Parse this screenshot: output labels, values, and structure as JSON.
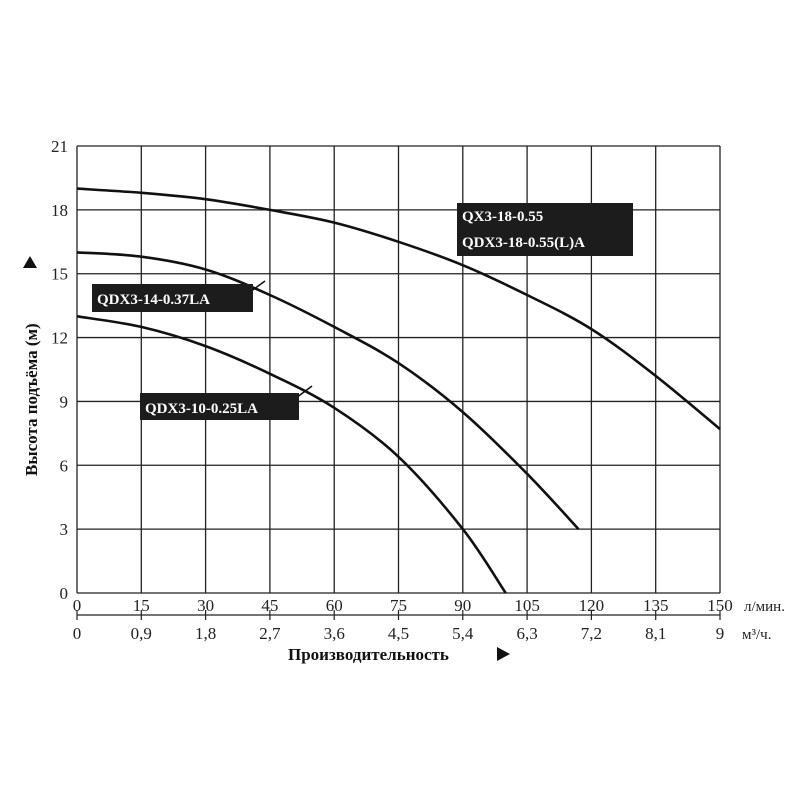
{
  "chart_data": {
    "type": "line",
    "ylabel": "Высота подъёма (м)",
    "xlabel": "Производительность",
    "x_unit_primary": "л/мин.",
    "x_unit_secondary": "м³/ч.",
    "xlim": [
      0,
      150
    ],
    "ylim": [
      0,
      21
    ],
    "x_ticks": [
      "0",
      "15",
      "30",
      "45",
      "60",
      "75",
      "90",
      "105",
      "120",
      "135",
      "150"
    ],
    "x_ticks_secondary": [
      "0",
      "0,9",
      "1,8",
      "2,7",
      "3,6",
      "4,5",
      "5,4",
      "6,3",
      "7,2",
      "8,1",
      "9"
    ],
    "y_ticks": [
      "0",
      "3",
      "6",
      "9",
      "12",
      "15",
      "18",
      "21"
    ],
    "grid": true,
    "series": [
      {
        "name": "QX3-18-0.55 / QDX3-18-0.55(L)A",
        "label_lines": [
          "QX3-18-0.55",
          "QDX3-18-0.55(L)A"
        ],
        "x": [
          0,
          15,
          30,
          45,
          60,
          75,
          90,
          105,
          120,
          135,
          150
        ],
        "y": [
          19.0,
          18.8,
          18.5,
          18.0,
          17.4,
          16.5,
          15.4,
          14.0,
          12.4,
          10.2,
          7.7
        ]
      },
      {
        "name": "QDX3-14-0.37LA",
        "label_lines": [
          "QDX3-14-0.37LA"
        ],
        "x": [
          0,
          15,
          30,
          45,
          60,
          75,
          90,
          105,
          117
        ],
        "y": [
          16.0,
          15.8,
          15.2,
          14.0,
          12.5,
          10.8,
          8.5,
          5.6,
          3.0
        ]
      },
      {
        "name": "QDX3-10-0.25LA",
        "label_lines": [
          "QDX3-10-0.25LA"
        ],
        "x": [
          0,
          15,
          30,
          45,
          60,
          75,
          90,
          100
        ],
        "y": [
          13.0,
          12.5,
          11.6,
          10.3,
          8.7,
          6.4,
          3.0,
          0.0
        ]
      }
    ]
  }
}
